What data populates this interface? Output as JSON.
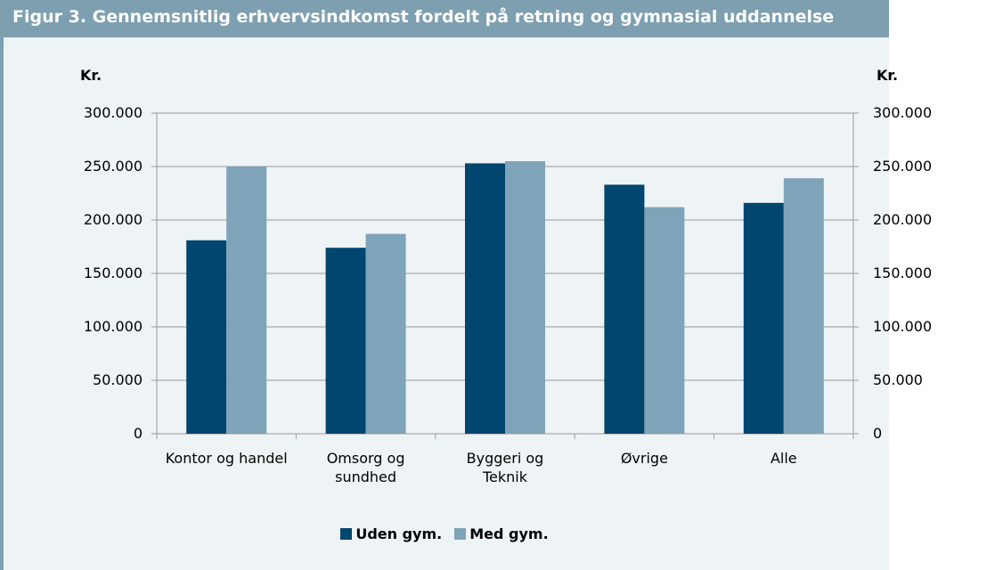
{
  "chart_data": {
    "type": "bar",
    "title": "Figur 3. Gennemsnitlig erhvervsindkomst fordelt på retning og gymnasial uddannelse",
    "ylabel": "Kr.",
    "y2label": "Kr.",
    "categories": [
      "Kontor og handel",
      "Omsorg og\nsundhed",
      "Byggeri og\nTeknik",
      "Øvrige",
      "Alle"
    ],
    "series": [
      {
        "name": "Uden gym.",
        "color": "#00466e",
        "values": [
          181000,
          174000,
          253000,
          233000,
          216000
        ]
      },
      {
        "name": "Med gym.",
        "color": "#7fa3b8",
        "values": [
          250000,
          187000,
          255000,
          212000,
          239000
        ]
      }
    ],
    "ylim": [
      0,
      300000
    ],
    "yticks": [
      0,
      {
        "value": 50000,
        "label": "50.000"
      },
      {
        "value": 100000,
        "label": "100.000"
      },
      {
        "value": 150000,
        "label": "150.000"
      },
      {
        "value": 200000,
        "label": "200.000"
      },
      {
        "value": 250000,
        "label": "250.000"
      },
      {
        "value": 300000,
        "label": "300.000"
      }
    ],
    "grid": true,
    "legend": "bottom"
  }
}
